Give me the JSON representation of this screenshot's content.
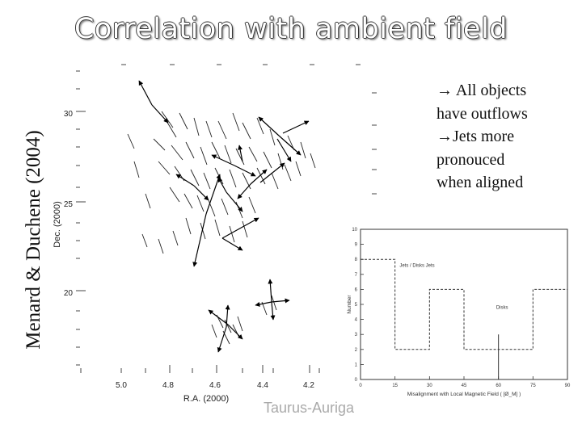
{
  "slide": {
    "title": "Correlation with ambient field",
    "credit": "Menard & Duchene (2004)",
    "bullets": [
      {
        "arrow": "→",
        "text": " All objects"
      },
      {
        "arrow": "",
        "text": "have outflows"
      },
      {
        "arrow": "→",
        "text": "Jets more"
      },
      {
        "arrow": "",
        "text": "pronouced"
      },
      {
        "arrow": "",
        "text": "when aligned"
      }
    ],
    "region_label": "Taurus-Auriga"
  },
  "map": {
    "xlabel": "R.A. (2000)",
    "ylabel": "Dec. (2000)",
    "x_ticks": [
      "5.0",
      "4.8",
      "4.6",
      "4.4",
      "4.2"
    ],
    "y_ticks": [
      "30",
      "25",
      "20"
    ]
  },
  "chart_data": {
    "type": "line",
    "xlabel": "Misalignment with Local Magnetic Field ( [Ø_M] )",
    "ylabel": "Number",
    "xlim": [
      0,
      90
    ],
    "ylim": [
      0,
      10
    ],
    "x_ticks": [
      "0",
      "15",
      "30",
      "45",
      "60",
      "75",
      "90"
    ],
    "y_ticks": [
      "0",
      "1",
      "2",
      "3",
      "4",
      "5",
      "6",
      "7",
      "8",
      "9",
      "10"
    ],
    "series": [
      {
        "name": "Jets / Disks",
        "style": "dashed",
        "bins": [
          [
            0,
            15,
            8
          ],
          [
            15,
            30,
            2
          ],
          [
            30,
            45,
            6
          ],
          [
            45,
            60,
            2
          ],
          [
            60,
            75,
            2
          ],
          [
            75,
            90,
            6
          ]
        ]
      },
      {
        "name": "Disks",
        "style": "solid",
        "bins": [
          [
            60,
            62,
            3
          ]
        ]
      }
    ],
    "annotations": [
      "Jets / Disks Jets",
      "Disks"
    ]
  },
  "colors": {
    "title": "#ffffff",
    "ink": "#111111",
    "region": "#aaaaaa"
  }
}
